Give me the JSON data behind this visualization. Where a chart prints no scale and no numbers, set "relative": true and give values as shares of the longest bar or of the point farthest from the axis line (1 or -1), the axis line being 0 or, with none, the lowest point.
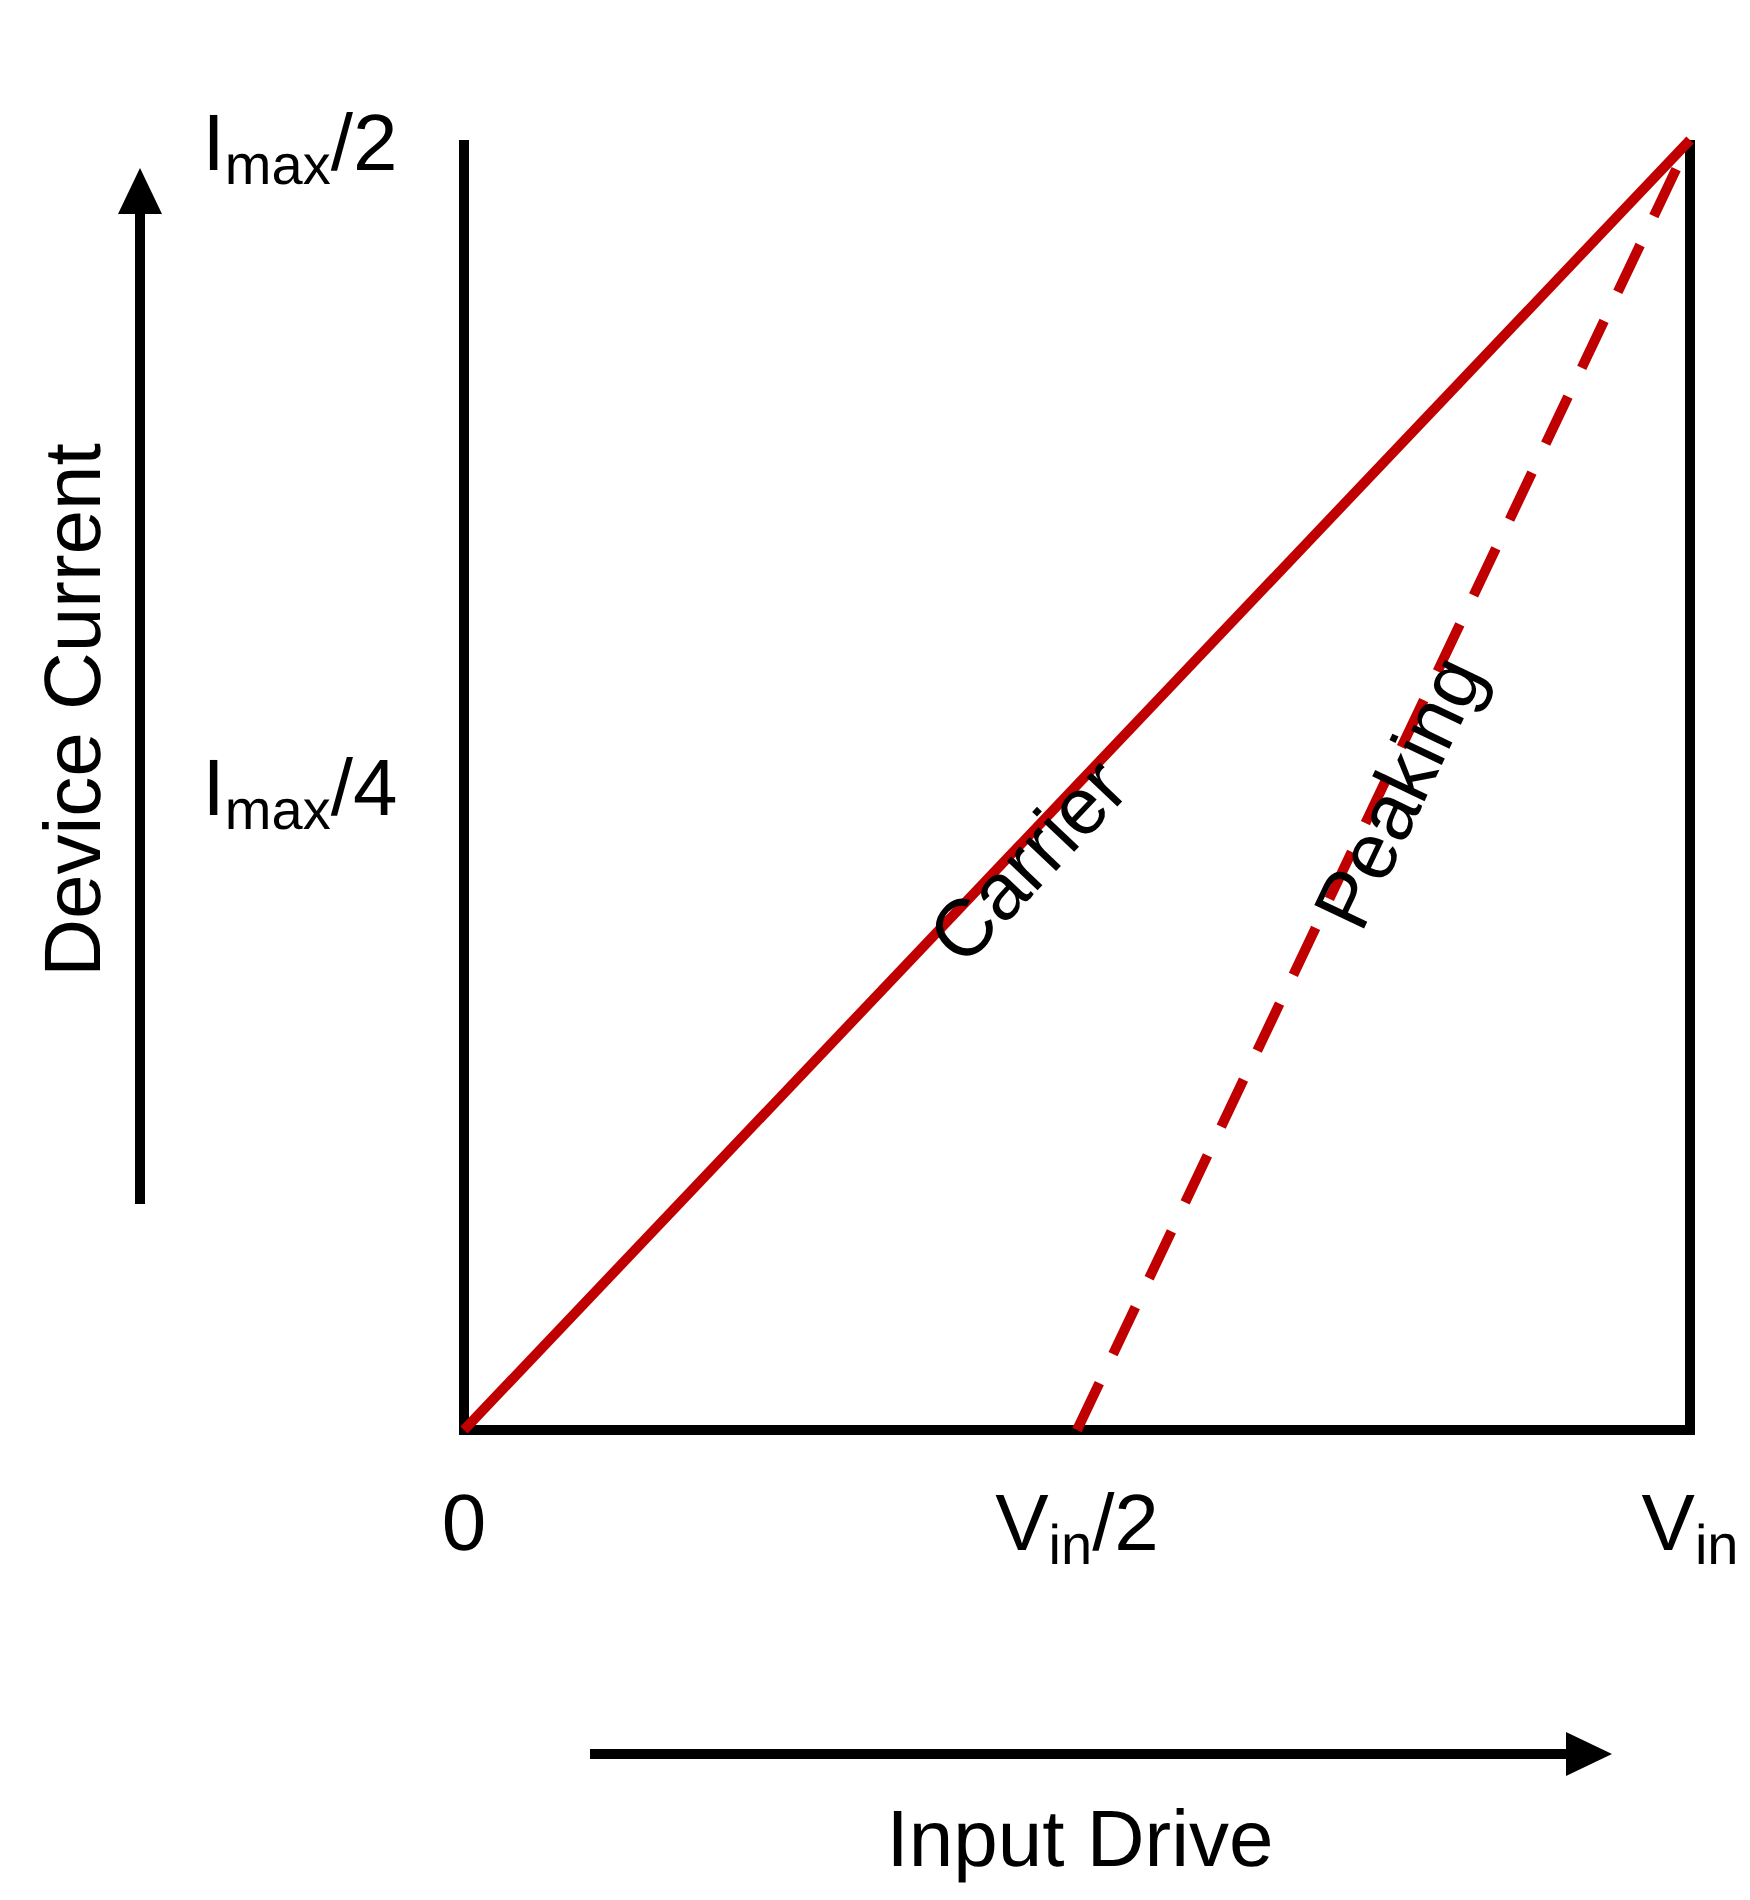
{
  "chart_data": {
    "type": "line",
    "xlabel": "Input Drive",
    "ylabel": "Device Current",
    "relative": true,
    "categories": [
      "0",
      "V$_{in}$/2",
      "V$_{in}$"
    ],
    "series": [
      {
        "name": "Carrier",
        "color": "#c00000",
        "values": [
          0,
          0.5,
          1
        ],
        "line_style": "solid"
      },
      {
        "name": "Peaking",
        "color": "#c00000",
        "values": [
          null,
          0,
          1
        ],
        "line_style": "dashed"
      }
    ],
    "annotations": [
      "I$_{max}$/4",
      "I$_{max}$/2"
    ],
    "legend": false,
    "marker": "none"
  }
}
